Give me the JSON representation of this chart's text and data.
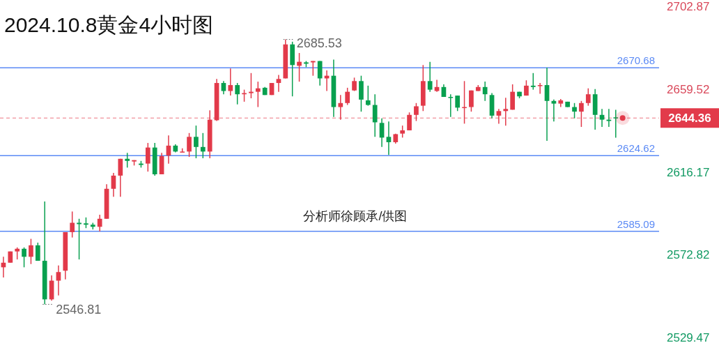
{
  "chart_data": {
    "type": "candlestick",
    "title": "2024.10.8黄金4小时图",
    "categories": [
      null,
      null,
      null,
      null,
      null,
      null,
      null,
      null,
      null,
      null,
      null,
      null,
      null,
      null,
      null,
      null,
      null,
      null,
      null,
      null,
      null,
      null,
      null,
      null,
      null,
      null,
      null,
      null,
      null,
      null,
      null,
      null,
      null,
      null,
      null,
      null,
      null,
      null,
      null,
      null,
      null,
      null,
      null,
      null,
      null,
      null,
      null,
      null,
      null,
      null,
      null,
      null,
      null,
      null,
      null,
      null,
      null,
      null,
      null,
      null,
      null,
      null,
      null,
      null,
      null,
      null,
      null,
      null,
      null,
      null,
      null,
      null,
      null,
      null,
      null,
      null,
      null,
      null,
      null,
      null,
      null,
      null,
      null,
      null,
      null,
      null,
      null,
      null,
      null,
      null
    ],
    "ohlc": [
      [
        2566.2,
        2571.7,
        2560.9,
        2568.6
      ],
      [
        2568.6,
        2574.5,
        2568.6,
        2574.5
      ],
      [
        2574.5,
        2576.6,
        2570.3,
        2575.9
      ],
      [
        2575.9,
        2576.6,
        2566.2,
        2571.7
      ],
      [
        2571.7,
        2581.1,
        2567.9,
        2577.7
      ],
      [
        2577.7,
        2579.1,
        2569.6,
        2569.6
      ],
      [
        2569.6,
        2600.7,
        2546.81,
        2549.4
      ],
      [
        2549.4,
        2562.0,
        2548.7,
        2559.2
      ],
      [
        2559.2,
        2567.2,
        2551.5,
        2563.7
      ],
      [
        2564.4,
        2584.6,
        2559.9,
        2584.6
      ],
      [
        2584.6,
        2595.4,
        2581.8,
        2589.5
      ],
      [
        2589.5,
        2591.6,
        2570.3,
        2588.8
      ],
      [
        2589.2,
        2592.3,
        2586.7,
        2588.5
      ],
      [
        2588.5,
        2589.5,
        2586.0,
        2587.4
      ],
      [
        2587.4,
        2593.7,
        2585.0,
        2591.6
      ],
      [
        2591.6,
        2609.7,
        2591.6,
        2607.3
      ],
      [
        2607.3,
        2615.6,
        2603.1,
        2614.2
      ],
      [
        2614.2,
        2623.0,
        2603.1,
        2623.0
      ],
      [
        2623.0,
        2626.1,
        2618.4,
        2621.9
      ],
      [
        2621.6,
        2622.3,
        2619.5,
        2622.3
      ],
      [
        2620.5,
        2621.9,
        2618.4,
        2619.8
      ],
      [
        2620.5,
        2631.3,
        2616.3,
        2628.9
      ],
      [
        2628.9,
        2631.3,
        2614.2,
        2614.9
      ],
      [
        2614.9,
        2626.1,
        2614.9,
        2624.4
      ],
      [
        2624.7,
        2635.2,
        2620.5,
        2629.9
      ],
      [
        2629.9,
        2630.6,
        2626.4,
        2626.8
      ],
      [
        2626.4,
        2628.5,
        2626.4,
        2626.8
      ],
      [
        2626.8,
        2636.5,
        2624.0,
        2634.5
      ],
      [
        2634.5,
        2640.4,
        2623.3,
        2629.2
      ],
      [
        2629.2,
        2636.5,
        2623.3,
        2626.8
      ],
      [
        2626.8,
        2648.4,
        2623.3,
        2643.5
      ],
      [
        2643.2,
        2664.8,
        2642.8,
        2662.7
      ],
      [
        2662.7,
        2663.7,
        2656.8,
        2658.5
      ],
      [
        2658.5,
        2670.3,
        2656.1,
        2661.6
      ],
      [
        2661.6,
        2662.7,
        2651.5,
        2656.8
      ],
      [
        2656.8,
        2659.2,
        2652.9,
        2657.4
      ],
      [
        2657.4,
        2667.9,
        2654.7,
        2658.1
      ],
      [
        2658.1,
        2663.4,
        2650.1,
        2659.9
      ],
      [
        2660.2,
        2660.6,
        2656.4,
        2656.4
      ],
      [
        2656.4,
        2662.7,
        2656.4,
        2662.7
      ],
      [
        2662.7,
        2666.9,
        2658.1,
        2664.8
      ],
      [
        2665.1,
        2685.53,
        2665.1,
        2682.9
      ],
      [
        2682.9,
        2684.3,
        2655.7,
        2672.1
      ],
      [
        2671.7,
        2678.4,
        2663.4,
        2673.8
      ],
      [
        2673.5,
        2674.2,
        2671.0,
        2672.8
      ],
      [
        2673.5,
        2674.2,
        2666.5,
        2674.2
      ],
      [
        2674.2,
        2674.2,
        2661.3,
        2665.1
      ],
      [
        2665.1,
        2669.3,
        2658.5,
        2666.5
      ],
      [
        2666.5,
        2674.9,
        2644.9,
        2650.1
      ],
      [
        2650.1,
        2656.4,
        2643.5,
        2652.2
      ],
      [
        2652.2,
        2660.2,
        2651.2,
        2658.1
      ],
      [
        2658.8,
        2665.5,
        2658.5,
        2663.7
      ],
      [
        2663.7,
        2666.5,
        2647.7,
        2654.0
      ],
      [
        2653.6,
        2661.3,
        2650.8,
        2651.2
      ],
      [
        2651.2,
        2656.8,
        2634.5,
        2642.1
      ],
      [
        2641.8,
        2644.2,
        2629.2,
        2634.1
      ],
      [
        2634.5,
        2642.5,
        2625.0,
        2631.7
      ],
      [
        2631.7,
        2636.2,
        2631.0,
        2635.9
      ],
      [
        2636.2,
        2640.4,
        2634.1,
        2637.9
      ],
      [
        2637.9,
        2647.3,
        2637.9,
        2646.0
      ],
      [
        2646.0,
        2652.2,
        2642.8,
        2650.5
      ],
      [
        2650.8,
        2672.1,
        2648.0,
        2663.7
      ],
      [
        2663.7,
        2673.8,
        2658.1,
        2659.2
      ],
      [
        2658.5,
        2664.4,
        2658.1,
        2660.6
      ],
      [
        2660.6,
        2662.0,
        2655.4,
        2655.4
      ],
      [
        2655.4,
        2656.8,
        2644.9,
        2655.0
      ],
      [
        2656.1,
        2656.1,
        2648.0,
        2649.8
      ],
      [
        2649.8,
        2663.7,
        2641.4,
        2650.1
      ],
      [
        2650.1,
        2658.8,
        2647.7,
        2658.8
      ],
      [
        2658.5,
        2661.6,
        2658.5,
        2660.6
      ],
      [
        2660.6,
        2663.4,
        2653.3,
        2656.8
      ],
      [
        2656.4,
        2657.4,
        2644.2,
        2645.6
      ],
      [
        2645.6,
        2649.1,
        2641.4,
        2648.0
      ],
      [
        2648.0,
        2655.0,
        2640.4,
        2649.1
      ],
      [
        2648.7,
        2662.0,
        2648.7,
        2658.1
      ],
      [
        2658.1,
        2658.1,
        2654.7,
        2655.7
      ],
      [
        2656.1,
        2664.1,
        2656.1,
        2661.3
      ],
      [
        2661.3,
        2667.9,
        2659.2,
        2660.6
      ],
      [
        2661.3,
        2662.7,
        2657.1,
        2661.6
      ],
      [
        2661.6,
        2670.7,
        2632.4,
        2653.3
      ],
      [
        2653.3,
        2654.0,
        2642.5,
        2651.9
      ],
      [
        2651.9,
        2654.3,
        2650.1,
        2653.6
      ],
      [
        2652.9,
        2652.9,
        2650.1,
        2650.1
      ],
      [
        2650.1,
        2652.2,
        2644.2,
        2647.7
      ],
      [
        2647.7,
        2653.3,
        2639.7,
        2652.2
      ],
      [
        2652.2,
        2659.9,
        2650.8,
        2656.8
      ],
      [
        2656.8,
        2659.5,
        2638.3,
        2646.0
      ],
      [
        2646.0,
        2649.1,
        2639.7,
        2643.5
      ],
      [
        2643.5,
        2649.1,
        2639.7,
        2642.8
      ],
      [
        2644.7,
        2648.7,
        2634.1,
        2644.36
      ]
    ],
    "colors": [
      "#e23a4a",
      "#e23a4a",
      "#e23a4a",
      "#08a04f",
      "#e23a4a",
      "#08a04f",
      "#08a04f",
      "#e23a4a",
      "#e23a4a",
      "#e23a4a",
      "#e23a4a",
      "#08a04f",
      "#08a04f",
      "#08a04f",
      "#e23a4a",
      "#e23a4a",
      "#e23a4a",
      "#e23a4a",
      "#08a04f",
      "#e23a4a",
      "#08a04f",
      "#e23a4a",
      "#08a04f",
      "#e23a4a",
      "#e23a4a",
      "#08a04f",
      "#e23a4a",
      "#e23a4a",
      "#08a04f",
      "#08a04f",
      "#e23a4a",
      "#e23a4a",
      "#08a04f",
      "#e23a4a",
      "#08a04f",
      "#e23a4a",
      "#e23a4a",
      "#e23a4a",
      "#08a04f",
      "#e23a4a",
      "#e23a4a",
      "#e23a4a",
      "#08a04f",
      "#e23a4a",
      "#08a04f",
      "#e23a4a",
      "#08a04f",
      "#e23a4a",
      "#08a04f",
      "#e23a4a",
      "#e23a4a",
      "#e23a4a",
      "#08a04f",
      "#08a04f",
      "#08a04f",
      "#08a04f",
      "#08a04f",
      "#e23a4a",
      "#e23a4a",
      "#e23a4a",
      "#e23a4a",
      "#e23a4a",
      "#08a04f",
      "#e23a4a",
      "#08a04f",
      "#08a04f",
      "#08a04f",
      "#e23a4a",
      "#e23a4a",
      "#e23a4a",
      "#08a04f",
      "#08a04f",
      "#e23a4a",
      "#e23a4a",
      "#e23a4a",
      "#08a04f",
      "#e23a4a",
      "#08a04f",
      "#e23a4a",
      "#08a04f",
      "#08a04f",
      "#e23a4a",
      "#08a04f",
      "#08a04f",
      "#e23a4a",
      "#e23a4a",
      "#08a04f",
      "#08a04f",
      "#08a04f",
      "#08a04f"
    ],
    "ylim": [
      2529.47,
      2702.87
    ],
    "yticks": [
      2702.87,
      2659.52,
      2616.17,
      2572.82,
      2529.47
    ],
    "ref_lines": [
      {
        "axis": "y",
        "value": 2670.68,
        "label": "2670.68",
        "color": "#5b8af5",
        "line_style": "solid"
      },
      {
        "axis": "y",
        "value": 2624.62,
        "label": "2624.62",
        "color": "#5b8af5",
        "line_style": "solid"
      },
      {
        "axis": "y",
        "value": 2585.09,
        "label": "2585.09",
        "color": "#5b8af5",
        "line_style": "solid"
      },
      {
        "axis": "y",
        "value": 2644.36,
        "label": "2644.36",
        "color": "#e23a4a",
        "line_style": "dashed"
      }
    ],
    "annotations": [
      "2685.53",
      "2546.81",
      "分析师徐顾承/供图"
    ]
  }
}
